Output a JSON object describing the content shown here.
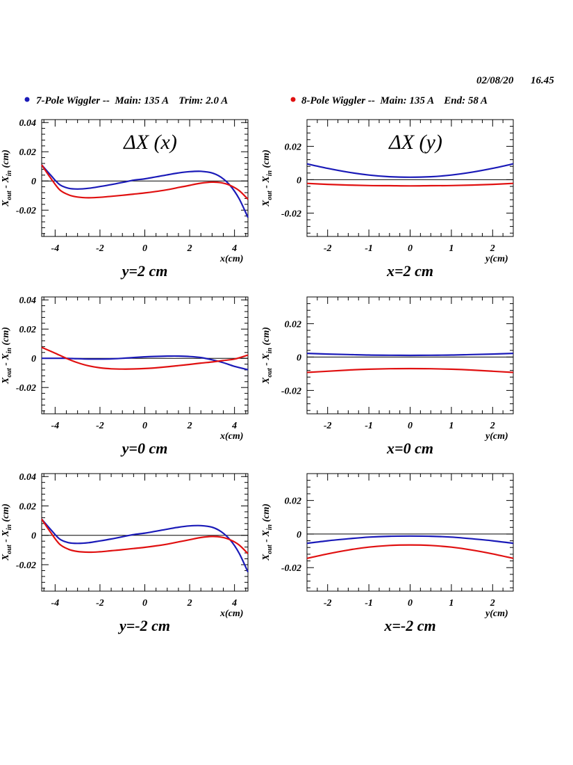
{
  "header": {
    "date": "02/08/20",
    "time": "16.45"
  },
  "legend": [
    {
      "label": "7-Pole Wiggler --  Main: 135 A    Trim: 2.0 A",
      "color": "#1a1ab8"
    },
    {
      "label": "8-Pole Wiggler --  Main: 135 A    End: 58 A",
      "color": "#e01010"
    }
  ],
  "chart_data": [
    {
      "type": "line",
      "title": "ΔX (x)",
      "xlabel": "x(cm)",
      "ylabel": "X_out - X_in (cm)",
      "caption": "y=2 cm",
      "xlim": [
        -4.6,
        4.6
      ],
      "ylim": [
        -0.038,
        0.042
      ],
      "xticks": [
        -4,
        -2,
        0,
        2,
        4
      ],
      "xtick_labels": [
        "-4",
        "-2",
        "0",
        "2",
        "4"
      ],
      "yticks": [
        -0.02,
        0,
        0.02,
        0.04
      ],
      "ytick_labels": [
        "-0.02",
        "0",
        "0.02",
        "0.04"
      ],
      "series": [
        {
          "name": "7-Pole Wiggler",
          "color": "#1a1ab8",
          "x": [
            -4.6,
            -4.2,
            -3.8,
            -3.4,
            -3.0,
            -2.5,
            -2.0,
            -1.5,
            -1.0,
            -0.5,
            0.0,
            0.5,
            1.0,
            1.5,
            2.0,
            2.5,
            3.0,
            3.4,
            3.8,
            4.2,
            4.6
          ],
          "y": [
            0.011,
            0.004,
            -0.0025,
            -0.005,
            -0.0055,
            -0.005,
            -0.0038,
            -0.0025,
            -0.001,
            0.0005,
            0.0015,
            0.0028,
            0.0042,
            0.0055,
            0.0064,
            0.0066,
            0.0055,
            0.0025,
            -0.003,
            -0.012,
            -0.025
          ]
        },
        {
          "name": "8-Pole Wiggler",
          "color": "#e01010",
          "x": [
            -4.6,
            -4.2,
            -3.8,
            -3.4,
            -3.0,
            -2.5,
            -2.0,
            -1.5,
            -1.0,
            -0.5,
            0.0,
            0.5,
            1.0,
            1.5,
            2.0,
            2.5,
            3.0,
            3.4,
            3.8,
            4.2,
            4.6
          ],
          "y": [
            0.011,
            0.002,
            -0.006,
            -0.0095,
            -0.011,
            -0.0115,
            -0.0112,
            -0.0105,
            -0.0098,
            -0.009,
            -0.0082,
            -0.0072,
            -0.006,
            -0.0045,
            -0.003,
            -0.0015,
            -0.0008,
            -0.0012,
            -0.003,
            -0.0065,
            -0.0125
          ]
        }
      ]
    },
    {
      "type": "line",
      "title": "ΔX (y)",
      "xlabel": "y(cm)",
      "ylabel": "X_out - X_in (cm)",
      "caption": "x=2 cm",
      "xlim": [
        -2.5,
        2.5
      ],
      "ylim": [
        -0.034,
        0.036
      ],
      "xticks": [
        -2,
        -1,
        0,
        1,
        2
      ],
      "xtick_labels": [
        "-2",
        "-1",
        "0",
        "1",
        "2"
      ],
      "yticks": [
        -0.02,
        0,
        0.02
      ],
      "ytick_labels": [
        "-0.02",
        "0",
        "0.02"
      ],
      "series": [
        {
          "name": "7-Pole Wiggler",
          "color": "#1a1ab8",
          "x": [
            -2.5,
            -2.0,
            -1.5,
            -1.0,
            -0.5,
            0.0,
            0.5,
            1.0,
            1.5,
            2.0,
            2.5
          ],
          "y": [
            0.0095,
            0.0068,
            0.0045,
            0.0028,
            0.0018,
            0.0015,
            0.0018,
            0.0028,
            0.0045,
            0.0068,
            0.0095
          ]
        },
        {
          "name": "8-Pole Wiggler",
          "color": "#e01010",
          "x": [
            -2.5,
            -2.0,
            -1.5,
            -1.0,
            -0.5,
            0.0,
            0.5,
            1.0,
            1.5,
            2.0,
            2.5
          ],
          "y": [
            -0.0022,
            -0.0028,
            -0.0032,
            -0.0035,
            -0.0036,
            -0.0037,
            -0.0036,
            -0.0035,
            -0.0032,
            -0.0028,
            -0.0022
          ]
        }
      ]
    },
    {
      "type": "line",
      "title": "",
      "xlabel": "x(cm)",
      "ylabel": "X_out - X_in (cm)",
      "caption": "y=0 cm",
      "xlim": [
        -4.6,
        4.6
      ],
      "ylim": [
        -0.038,
        0.042
      ],
      "xticks": [
        -4,
        -2,
        0,
        2,
        4
      ],
      "xtick_labels": [
        "-4",
        "-2",
        "0",
        "2",
        "4"
      ],
      "yticks": [
        -0.02,
        0,
        0.02,
        0.04
      ],
      "ytick_labels": [
        "-0.02",
        "0",
        "0.02",
        "0.04"
      ],
      "series": [
        {
          "name": "7-Pole Wiggler",
          "color": "#1a1ab8",
          "x": [
            -4.6,
            -4.0,
            -3.5,
            -3.0,
            -2.5,
            -2.0,
            -1.5,
            -1.0,
            -0.5,
            0.0,
            0.5,
            1.0,
            1.5,
            2.0,
            2.5,
            3.0,
            3.5,
            4.0,
            4.6
          ],
          "y": [
            0.0,
            0.0,
            0.0,
            -0.0003,
            -0.0005,
            -0.0005,
            -0.0004,
            0.0,
            0.0005,
            0.001,
            0.0013,
            0.0015,
            0.0015,
            0.0012,
            0.0005,
            -0.001,
            -0.003,
            -0.0055,
            -0.0078
          ]
        },
        {
          "name": "8-Pole Wiggler",
          "color": "#e01010",
          "x": [
            -4.6,
            -4.0,
            -3.5,
            -3.0,
            -2.5,
            -2.0,
            -1.5,
            -1.0,
            -0.5,
            0.0,
            0.5,
            1.0,
            1.5,
            2.0,
            2.5,
            3.0,
            3.5,
            4.0,
            4.6
          ],
          "y": [
            0.0075,
            0.0035,
            0.0,
            -0.003,
            -0.0052,
            -0.0065,
            -0.0072,
            -0.0074,
            -0.0073,
            -0.007,
            -0.0065,
            -0.0058,
            -0.005,
            -0.0042,
            -0.0033,
            -0.0025,
            -0.0015,
            -0.0005,
            0.0022
          ]
        }
      ]
    },
    {
      "type": "line",
      "title": "",
      "xlabel": "y(cm)",
      "ylabel": "X_out - X_in (cm)",
      "caption": "x=0 cm",
      "xlim": [
        -2.5,
        2.5
      ],
      "ylim": [
        -0.034,
        0.036
      ],
      "xticks": [
        -2,
        -1,
        0,
        1,
        2
      ],
      "xtick_labels": [
        "-2",
        "-1",
        "0",
        "1",
        "2"
      ],
      "yticks": [
        -0.02,
        0,
        0.02
      ],
      "ytick_labels": [
        "-0.02",
        "0",
        "0.02"
      ],
      "series": [
        {
          "name": "7-Pole Wiggler",
          "color": "#1a1ab8",
          "x": [
            -2.5,
            -2.0,
            -1.5,
            -1.0,
            -0.5,
            0.0,
            0.5,
            1.0,
            1.5,
            2.0,
            2.5
          ],
          "y": [
            0.0022,
            0.0018,
            0.0015,
            0.0012,
            0.0011,
            0.001,
            0.0011,
            0.0012,
            0.0015,
            0.0018,
            0.0022
          ]
        },
        {
          "name": "8-Pole Wiggler",
          "color": "#e01010",
          "x": [
            -2.5,
            -2.0,
            -1.5,
            -1.0,
            -0.5,
            0.0,
            0.5,
            1.0,
            1.5,
            2.0,
            2.5
          ],
          "y": [
            -0.0092,
            -0.0085,
            -0.0078,
            -0.0073,
            -0.007,
            -0.0069,
            -0.007,
            -0.0073,
            -0.0078,
            -0.0085,
            -0.0092
          ]
        }
      ]
    },
    {
      "type": "line",
      "title": "",
      "xlabel": "x(cm)",
      "ylabel": "X_out - X_in (cm)",
      "caption": "y=-2 cm",
      "xlim": [
        -4.6,
        4.6
      ],
      "ylim": [
        -0.038,
        0.042
      ],
      "xticks": [
        -4,
        -2,
        0,
        2,
        4
      ],
      "xtick_labels": [
        "-4",
        "-2",
        "0",
        "2",
        "4"
      ],
      "yticks": [
        -0.02,
        0,
        0.02,
        0.04
      ],
      "ytick_labels": [
        "-0.02",
        "0",
        "0.02",
        "0.04"
      ],
      "series": [
        {
          "name": "7-Pole Wiggler",
          "color": "#1a1ab8",
          "x": [
            -4.6,
            -4.2,
            -3.8,
            -3.4,
            -3.0,
            -2.5,
            -2.0,
            -1.5,
            -1.0,
            -0.5,
            0.0,
            0.5,
            1.0,
            1.5,
            2.0,
            2.5,
            3.0,
            3.4,
            3.8,
            4.2,
            4.6
          ],
          "y": [
            0.011,
            0.004,
            -0.0025,
            -0.005,
            -0.0055,
            -0.005,
            -0.0038,
            -0.0025,
            -0.001,
            0.0005,
            0.0015,
            0.0028,
            0.0042,
            0.0055,
            0.0064,
            0.0066,
            0.0055,
            0.0025,
            -0.003,
            -0.012,
            -0.025
          ]
        },
        {
          "name": "8-Pole Wiggler",
          "color": "#e01010",
          "x": [
            -4.6,
            -4.2,
            -3.8,
            -3.4,
            -3.0,
            -2.5,
            -2.0,
            -1.5,
            -1.0,
            -0.5,
            0.0,
            0.5,
            1.0,
            1.5,
            2.0,
            2.5,
            3.0,
            3.4,
            3.8,
            4.2,
            4.6
          ],
          "y": [
            0.011,
            0.002,
            -0.006,
            -0.0095,
            -0.011,
            -0.0115,
            -0.0112,
            -0.0105,
            -0.0098,
            -0.009,
            -0.0082,
            -0.0072,
            -0.006,
            -0.0045,
            -0.003,
            -0.0015,
            -0.0008,
            -0.0012,
            -0.003,
            -0.0065,
            -0.0125
          ]
        }
      ]
    },
    {
      "type": "line",
      "title": "",
      "xlabel": "y(cm)",
      "ylabel": "X_out - X_in (cm)",
      "caption": "x=-2 cm",
      "xlim": [
        -2.5,
        2.5
      ],
      "ylim": [
        -0.034,
        0.036
      ],
      "xticks": [
        -2,
        -1,
        0,
        1,
        2
      ],
      "xtick_labels": [
        "-2",
        "-1",
        "0",
        "1",
        "2"
      ],
      "yticks": [
        -0.02,
        0,
        0.02
      ],
      "ytick_labels": [
        "-0.02",
        "0",
        "0.02"
      ],
      "series": [
        {
          "name": "7-Pole Wiggler",
          "color": "#1a1ab8",
          "x": [
            -2.5,
            -2.0,
            -1.5,
            -1.0,
            -0.5,
            0.0,
            0.5,
            1.0,
            1.5,
            2.0,
            2.5
          ],
          "y": [
            -0.0055,
            -0.004,
            -0.0028,
            -0.0018,
            -0.0013,
            -0.0012,
            -0.0013,
            -0.0018,
            -0.0028,
            -0.004,
            -0.0055
          ]
        },
        {
          "name": "8-Pole Wiggler",
          "color": "#e01010",
          "x": [
            -2.5,
            -2.0,
            -1.5,
            -1.0,
            -0.5,
            0.0,
            0.5,
            1.0,
            1.5,
            2.0,
            2.5
          ],
          "y": [
            -0.0145,
            -0.0118,
            -0.0095,
            -0.0078,
            -0.0068,
            -0.0065,
            -0.0068,
            -0.0078,
            -0.0095,
            -0.0118,
            -0.0145
          ]
        }
      ]
    }
  ]
}
